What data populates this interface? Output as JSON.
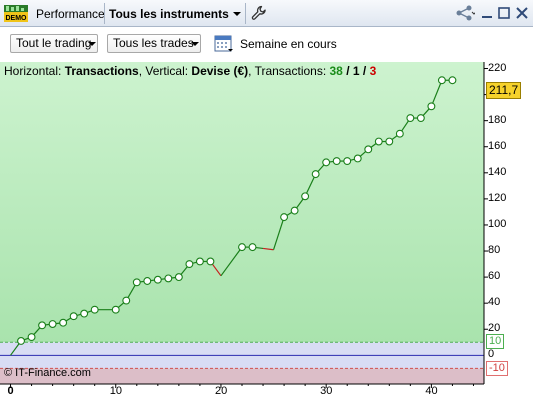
{
  "titlebar": {
    "logo_text": "DEMO",
    "tab_performance": "Performance",
    "tab_instruments": "Tous les instruments",
    "icons": [
      "wrench-icon",
      "share-icon",
      "minimize-icon",
      "restore-icon",
      "close-icon"
    ]
  },
  "toolbar": {
    "trading_dropdown": "Tout le trading",
    "trades_dropdown": "Tous les trades",
    "calendar_icon": "calendar-icon",
    "period_label": "Semaine en cours"
  },
  "info": {
    "horizontal_label": "Horizontal: ",
    "horizontal_value": "Transactions",
    "vertical_label": ", Vertical: ",
    "vertical_value": "Devise (€)",
    "transactions_label": ", Transactions: ",
    "total": "38",
    "slash1": " / ",
    "neutral": "1",
    "slash2": " / ",
    "losses": "3"
  },
  "credit": "© IT-Finance.com",
  "colors": {
    "upper_zone": "#c3f0c6",
    "lower_zone": "#dcbec8",
    "neutral_zone": "#d8dcf4",
    "line_up": "#1a7f1a",
    "line_down": "#c81e1e",
    "current_badge": "#f6d22b"
  },
  "chart_data": {
    "type": "line",
    "x": [
      0,
      1,
      2,
      3,
      4,
      5,
      6,
      7,
      8,
      10,
      11,
      12,
      13,
      14,
      15,
      16,
      17,
      18,
      19,
      20,
      22,
      23,
      24,
      25,
      26,
      27,
      28,
      29,
      30,
      31,
      32,
      33,
      34,
      35,
      36,
      37,
      38,
      39,
      40,
      41,
      42
    ],
    "y": [
      0,
      11,
      14,
      23,
      24,
      25,
      30,
      32,
      35,
      35,
      42,
      56,
      57,
      58,
      59,
      60,
      70,
      72,
      72,
      61,
      83,
      83,
      82,
      81,
      106,
      111,
      122,
      139,
      148,
      149,
      149,
      151,
      158,
      164,
      164,
      170,
      182,
      182,
      191,
      211,
      211
    ],
    "drawn_markers": [
      1,
      2,
      3,
      4,
      5,
      6,
      7,
      8,
      10,
      11,
      12,
      13,
      14,
      15,
      16,
      17,
      18,
      19,
      22,
      23,
      26,
      27,
      28,
      29,
      30,
      31,
      32,
      33,
      34,
      35,
      36,
      37,
      38,
      39,
      40,
      41,
      42
    ],
    "down_segments": [
      [
        19,
        20
      ],
      [
        24,
        25
      ]
    ],
    "xlim": [
      -1,
      45
    ],
    "ylim": [
      -22,
      225
    ],
    "x_ticks": [
      0,
      10,
      20,
      30,
      40
    ],
    "y_ticks": [
      20,
      40,
      60,
      80,
      100,
      120,
      140,
      160,
      180,
      200,
      220
    ],
    "current_value_label": "211,7",
    "upper_threshold": 10,
    "upper_threshold_label": "10",
    "zero_label": "0",
    "lower_threshold": -10,
    "lower_threshold_label": "-10",
    "grid": false
  }
}
